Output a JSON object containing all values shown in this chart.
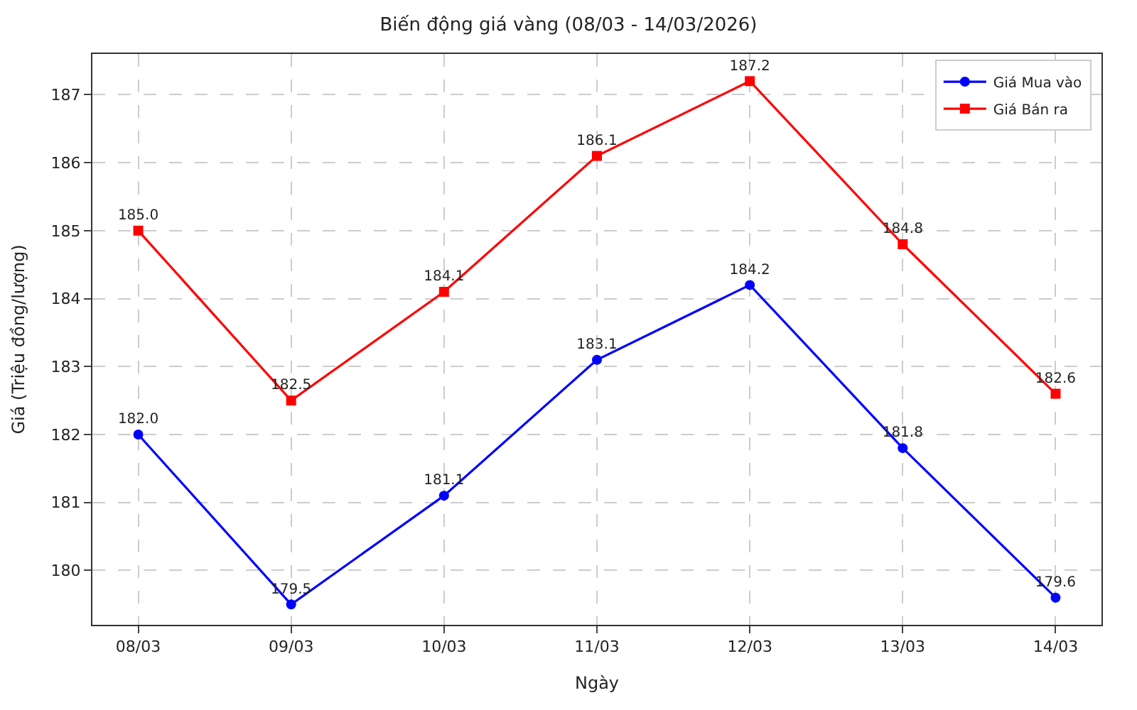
{
  "chart_data": {
    "type": "line",
    "title": "Biến động giá vàng (08/03 - 14/03/2026)",
    "xlabel": "Ngày",
    "ylabel": "Giá (Triệu đồng/lượng)",
    "categories": [
      "08/03",
      "09/03",
      "10/03",
      "11/03",
      "12/03",
      "13/03",
      "14/03"
    ],
    "series": [
      {
        "name": "Giá Mua vào",
        "color": "#0000ff",
        "marker": "circle",
        "values": [
          182.0,
          179.5,
          181.1,
          183.1,
          184.2,
          181.8,
          179.6
        ],
        "value_labels": [
          "182.0",
          "179.5",
          "181.1",
          "183.1",
          "184.2",
          "181.8",
          "179.6"
        ]
      },
      {
        "name": "Giá Bán ra",
        "color": "#ff0000",
        "marker": "square",
        "values": [
          185.0,
          182.5,
          184.1,
          186.1,
          187.2,
          184.8,
          182.6
        ],
        "value_labels": [
          "185.0",
          "182.5",
          "184.1",
          "186.1",
          "187.2",
          "184.8",
          "182.6"
        ]
      }
    ],
    "ylim": [
      179.2,
      187.6
    ],
    "yticks": [
      180,
      181,
      182,
      183,
      184,
      185,
      186,
      187
    ],
    "grid": true,
    "legend": "top right"
  }
}
